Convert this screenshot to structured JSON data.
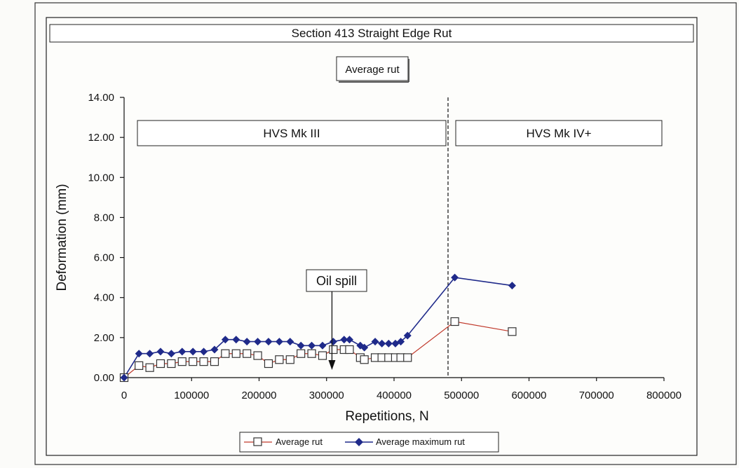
{
  "chart_data": {
    "type": "line",
    "title": "Section 413 Straight Edge Rut",
    "subtitle": "Average rut",
    "xlabel": "Repetitions, N",
    "ylabel": "Deformation (mm)",
    "xlim": [
      0,
      800000
    ],
    "ylim": [
      0,
      14
    ],
    "x_ticks": [
      "0",
      "100000",
      "200000",
      "300000",
      "400000",
      "500000",
      "600000",
      "700000",
      "800000"
    ],
    "y_ticks": [
      "0.00",
      "2.00",
      "4.00",
      "6.00",
      "8.00",
      "10.00",
      "12.00",
      "14.00"
    ],
    "grid": false,
    "legend_position": "bottom",
    "regions": [
      {
        "label": "HVS Mk III",
        "x_from": 0,
        "x_to": 480000
      },
      {
        "label": "HVS Mk IV+",
        "x_from": 480000,
        "x_to": 800000
      }
    ],
    "divider_x": 480000,
    "annotation": {
      "label": "Oil spill",
      "x": 308000
    },
    "series": [
      {
        "name": "Average rut",
        "color": "#c0392b",
        "marker": "open-square",
        "points": [
          [
            0,
            0.0
          ],
          [
            22000,
            0.6
          ],
          [
            38000,
            0.5
          ],
          [
            54000,
            0.7
          ],
          [
            70000,
            0.7
          ],
          [
            86000,
            0.8
          ],
          [
            102000,
            0.8
          ],
          [
            118000,
            0.8
          ],
          [
            134000,
            0.8
          ],
          [
            150000,
            1.2
          ],
          [
            166000,
            1.2
          ],
          [
            182000,
            1.2
          ],
          [
            198000,
            1.1
          ],
          [
            214000,
            0.7
          ],
          [
            230000,
            0.9
          ],
          [
            246000,
            0.9
          ],
          [
            262000,
            1.2
          ],
          [
            278000,
            1.2
          ],
          [
            294000,
            1.1
          ],
          [
            310000,
            1.4
          ],
          [
            326000,
            1.4
          ],
          [
            334000,
            1.4
          ],
          [
            350000,
            1.0
          ],
          [
            356000,
            0.9
          ],
          [
            372000,
            1.0
          ],
          [
            382000,
            1.0
          ],
          [
            392000,
            1.0
          ],
          [
            402000,
            1.0
          ],
          [
            410000,
            1.0
          ],
          [
            420000,
            1.0
          ],
          [
            490000,
            2.8
          ],
          [
            575000,
            2.3
          ]
        ]
      },
      {
        "name": "Average maximum rut",
        "color": "#1f2a8a",
        "marker": "filled-diamond",
        "points": [
          [
            0,
            0.0
          ],
          [
            22000,
            1.2
          ],
          [
            38000,
            1.2
          ],
          [
            54000,
            1.3
          ],
          [
            70000,
            1.2
          ],
          [
            86000,
            1.3
          ],
          [
            102000,
            1.3
          ],
          [
            118000,
            1.3
          ],
          [
            134000,
            1.4
          ],
          [
            150000,
            1.9
          ],
          [
            166000,
            1.9
          ],
          [
            182000,
            1.8
          ],
          [
            198000,
            1.8
          ],
          [
            214000,
            1.8
          ],
          [
            230000,
            1.8
          ],
          [
            246000,
            1.8
          ],
          [
            262000,
            1.6
          ],
          [
            278000,
            1.6
          ],
          [
            294000,
            1.6
          ],
          [
            310000,
            1.8
          ],
          [
            326000,
            1.9
          ],
          [
            334000,
            1.9
          ],
          [
            350000,
            1.6
          ],
          [
            356000,
            1.5
          ],
          [
            372000,
            1.8
          ],
          [
            382000,
            1.7
          ],
          [
            392000,
            1.7
          ],
          [
            402000,
            1.7
          ],
          [
            410000,
            1.8
          ],
          [
            420000,
            2.1
          ],
          [
            490000,
            5.0
          ],
          [
            575000,
            4.6
          ]
        ]
      }
    ]
  }
}
